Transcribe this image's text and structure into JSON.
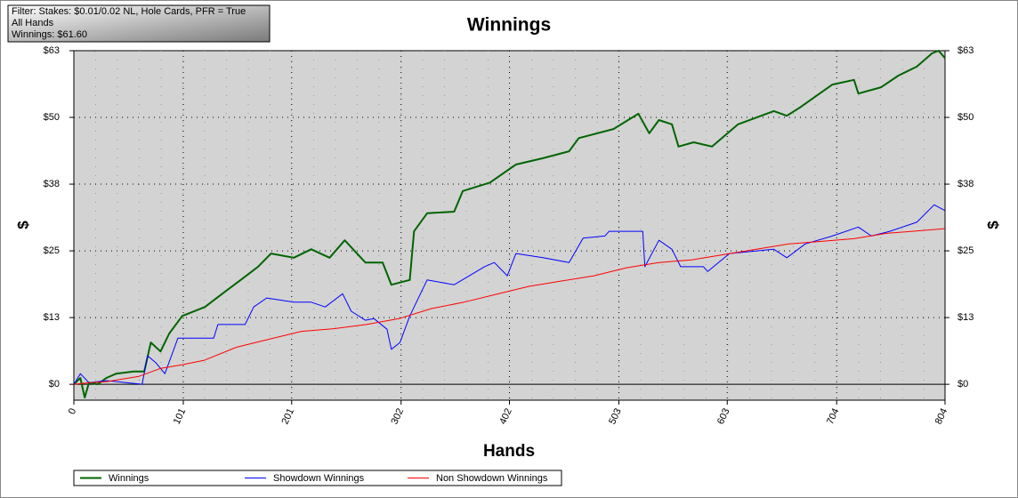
{
  "filter_box": {
    "lines": [
      "Filter: Stakes: $0.01/0.02 NL, Hole Cards, PFR = True",
      "All Hands",
      "Winnings: $61.60"
    ]
  },
  "chart_data": {
    "type": "line",
    "title": "Winnings",
    "x_label": "Hands",
    "y_label": "$",
    "y2_label": "$",
    "xlim": [
      0,
      804
    ],
    "xticks": [
      0,
      101,
      201,
      302,
      402,
      503,
      603,
      704,
      804
    ],
    "ylim": [
      -3,
      63
    ],
    "yticks": [
      {
        "value": 0,
        "label": "$0"
      },
      {
        "value": 12.6,
        "label": "$13"
      },
      {
        "value": 25.2,
        "label": "$25"
      },
      {
        "value": 37.8,
        "label": "$38"
      },
      {
        "value": 50.4,
        "label": "$50"
      },
      {
        "value": 63,
        "label": "$63"
      }
    ],
    "y2lim": [
      -3,
      63
    ],
    "y2ticks": [
      {
        "value": 0,
        "label": "$0"
      },
      {
        "value": 12.6,
        "label": "$13"
      },
      {
        "value": 25.2,
        "label": "$25"
      },
      {
        "value": 37.8,
        "label": "$38"
      },
      {
        "value": 50.4,
        "label": "$50"
      },
      {
        "value": 63,
        "label": "$63"
      }
    ],
    "grid": true,
    "legend": "bottom",
    "series": [
      {
        "name": "Winnings",
        "color": "#006400",
        "x": [
          0,
          6,
          10,
          14,
          22,
          30,
          39,
          55,
          65,
          71,
          80,
          88,
          100,
          121,
          137,
          154,
          170,
          182,
          203,
          219,
          236,
          250,
          269,
          285,
          293,
          310,
          314,
          326,
          351,
          359,
          384,
          408,
          433,
          457,
          466,
          498,
          521,
          531,
          540,
          552,
          558,
          572,
          589,
          613,
          646,
          658,
          671,
          700,
          720,
          724,
          745,
          761,
          778,
          792,
          798,
          804
        ],
        "values": [
          0,
          1.2,
          -2.5,
          0.3,
          0,
          1.2,
          2.0,
          2.4,
          2.4,
          7.9,
          6.2,
          9.6,
          12.9,
          14.6,
          17.1,
          19.7,
          22.2,
          24.7,
          23.9,
          25.5,
          23.9,
          27.2,
          23.0,
          23.0,
          18.8,
          19.7,
          28.9,
          32.3,
          32.6,
          36.5,
          38.1,
          41.5,
          42.7,
          44.0,
          46.5,
          48.2,
          51.1,
          47.4,
          49.9,
          49.1,
          44.9,
          45.7,
          44.9,
          49.1,
          51.6,
          50.7,
          52.4,
          56.6,
          57.5,
          54.9,
          56.1,
          58.3,
          60.0,
          62.5,
          63.0,
          61.6
        ]
      },
      {
        "name": "Showdown Winnings",
        "color": "#0000ff",
        "x": [
          0,
          6,
          14,
          30,
          63,
          68,
          76,
          84,
          96,
          129,
          133,
          158,
          166,
          178,
          203,
          219,
          232,
          248,
          256,
          269,
          277,
          289,
          293,
          301,
          310,
          326,
          351,
          379,
          388,
          400,
          408,
          433,
          457,
          470,
          490,
          494,
          525,
          527,
          540,
          552,
          560,
          581,
          585,
          605,
          646,
          658,
          675,
          700,
          724,
          736,
          753,
          778,
          794,
          804
        ],
        "values": [
          0,
          2.0,
          0.3,
          0.7,
          0,
          5.4,
          4.0,
          2.0,
          8.7,
          8.7,
          11.3,
          11.3,
          14.6,
          16.3,
          15.5,
          15.5,
          14.6,
          17.1,
          13.8,
          12.1,
          12.4,
          10.4,
          6.6,
          7.9,
          12.9,
          19.7,
          18.8,
          22.2,
          23.0,
          20.5,
          24.7,
          23.9,
          23.0,
          27.6,
          28.0,
          28.9,
          28.9,
          22.2,
          27.2,
          25.5,
          22.2,
          22.2,
          21.3,
          24.7,
          25.5,
          23.9,
          26.5,
          28.0,
          29.7,
          28.0,
          28.9,
          30.6,
          33.9,
          32.8
        ]
      },
      {
        "name": "Non Showdown Winnings",
        "color": "#ff0000",
        "x": [
          0,
          14,
          30,
          60,
          80,
          100,
          120,
          150,
          180,
          210,
          240,
          270,
          300,
          330,
          360,
          390,
          420,
          450,
          480,
          510,
          540,
          570,
          600,
          630,
          660,
          690,
          720,
          750,
          780,
          804
        ],
        "values": [
          0,
          0.3,
          0.5,
          1.5,
          3.0,
          3.7,
          4.5,
          7.0,
          8.5,
          10.0,
          10.5,
          11.3,
          12.4,
          14.3,
          15.5,
          17.0,
          18.5,
          19.5,
          20.5,
          22.0,
          23.0,
          23.5,
          24.5,
          25.5,
          26.5,
          27.0,
          27.5,
          28.5,
          29.0,
          29.4
        ]
      }
    ]
  }
}
